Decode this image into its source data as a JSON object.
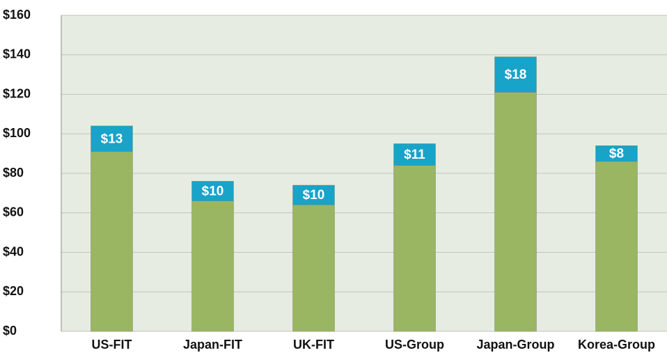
{
  "chart_data": {
    "type": "stacked_bar",
    "categories": [
      "US-FIT",
      "Japan-FIT",
      "UK-FIT",
      "US-Group",
      "Japan-Group",
      "Korea-Group"
    ],
    "series": [
      {
        "color": "#9bb663",
        "values": [
          91,
          66,
          64,
          84,
          121,
          86
        ]
      },
      {
        "color": "#18a3c9",
        "values": [
          13,
          10,
          10,
          11,
          18,
          8
        ],
        "value_labels": [
          "$13",
          "$10",
          "$10",
          "$11",
          "$18",
          "$8"
        ]
      }
    ],
    "ylim": [
      0,
      160
    ],
    "yticks": [
      {
        "value": 0,
        "label": "$0"
      },
      {
        "value": 20,
        "label": "$20"
      },
      {
        "value": 40,
        "label": "$40"
      },
      {
        "value": 60,
        "label": "$60"
      },
      {
        "value": 80,
        "label": "$80"
      },
      {
        "value": 100,
        "label": "$100"
      },
      {
        "value": 120,
        "label": "$120"
      },
      {
        "value": 140,
        "label": "$140"
      },
      {
        "value": 160,
        "label": "$160"
      }
    ],
    "grid": true
  }
}
